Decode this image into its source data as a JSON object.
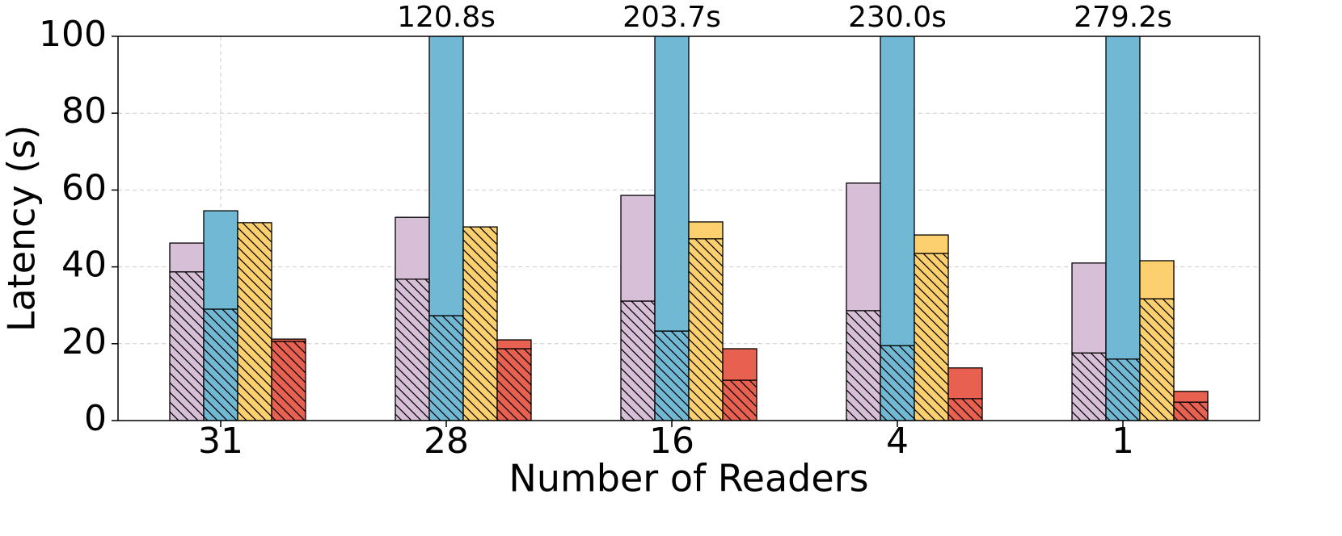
{
  "chart_data": {
    "type": "bar",
    "x_label": "Number of Readers",
    "y_label": "Latency (s)",
    "categories": [
      "31",
      "28",
      "16",
      "4",
      "1"
    ],
    "ylim": [
      0,
      100
    ],
    "yticks": [
      0,
      20,
      40,
      60,
      80,
      100
    ],
    "grid": true,
    "series": [
      {
        "color": "#d8bfd8",
        "values": [
          38.7,
          36.8,
          31.1,
          28.6,
          17.6
        ],
        "upper_values": [
          7.5,
          16.1,
          27.5,
          33.2,
          23.4
        ]
      },
      {
        "color": "#70b8d4",
        "values": [
          29.0,
          27.3,
          23.3,
          19.5,
          16.0
        ],
        "upper_values": [
          25.6,
          93.5,
          180.4,
          210.5,
          263.2
        ]
      },
      {
        "color": "#fdd06f",
        "values": [
          51.5,
          50.4,
          47.3,
          43.5,
          31.7
        ],
        "upper_values": [
          0,
          0,
          4.4,
          4.8,
          9.9
        ]
      },
      {
        "color": "#e86050",
        "values": [
          20.6,
          18.7,
          10.5,
          5.7,
          4.8
        ],
        "upper_values": [
          0.6,
          2.3,
          8.2,
          8.0,
          2.8
        ]
      }
    ],
    "totals": {
      "series_index": 1,
      "values": [
        null,
        120.8,
        203.7,
        230.0,
        279.2
      ],
      "value_labels": [
        null,
        "120.8s",
        "203.7s",
        "230.0s",
        "279.2s"
      ]
    }
  }
}
